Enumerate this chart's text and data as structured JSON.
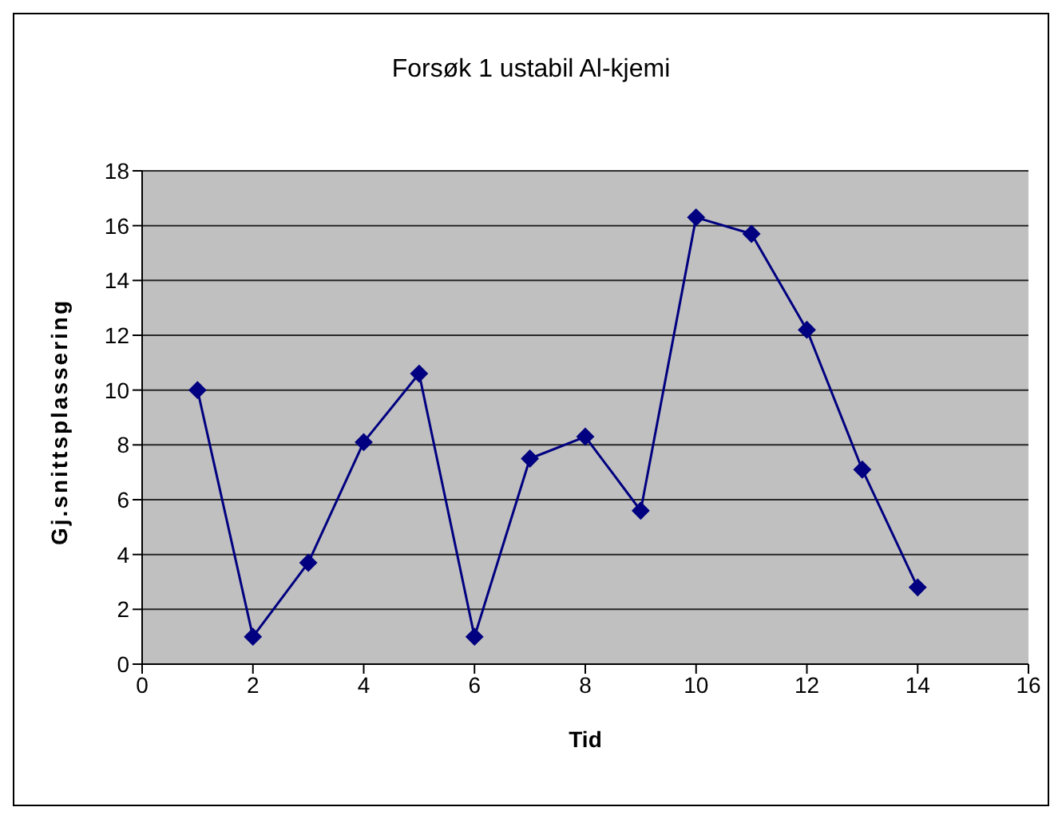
{
  "chart_data": {
    "type": "line",
    "title": "Forsøk 1 ustabil Al-kjemi",
    "xlabel": "Tid",
    "ylabel": "Gj.snittsplassering",
    "x": [
      1,
      2,
      3,
      4,
      5,
      6,
      7,
      8,
      9,
      10,
      11,
      12,
      13,
      14
    ],
    "series": [
      {
        "color": "#000080",
        "values": [
          10,
          1,
          3.7,
          8.1,
          10.6,
          1,
          7.5,
          8.3,
          5.6,
          16.3,
          15.7,
          12.2,
          7.1,
          2.8
        ]
      }
    ],
    "xlim": [
      0,
      16
    ],
    "xticks": [
      0,
      2,
      4,
      6,
      8,
      10,
      12,
      14,
      16
    ],
    "ylim": [
      0,
      18
    ],
    "yticks": [
      0,
      2,
      4,
      6,
      8,
      10,
      12,
      14,
      16,
      18
    ],
    "grid": "y",
    "legend": false,
    "marker": "diamond",
    "line_style": "solid"
  }
}
